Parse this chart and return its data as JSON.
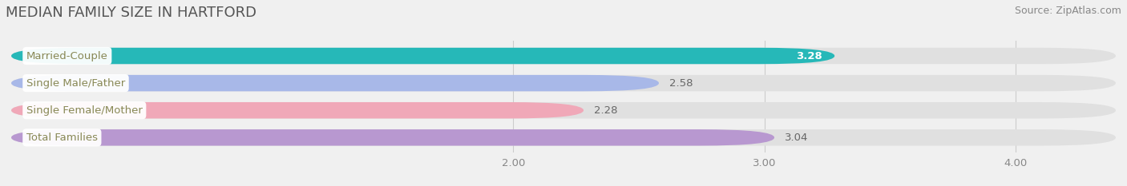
{
  "title": "MEDIAN FAMILY SIZE IN HARTFORD",
  "source": "Source: ZipAtlas.com",
  "categories": [
    "Married-Couple",
    "Single Male/Father",
    "Single Female/Mother",
    "Total Families"
  ],
  "values": [
    3.28,
    2.58,
    2.28,
    3.04
  ],
  "bar_colors": [
    "#26b8b8",
    "#a8b8e8",
    "#f0a8b8",
    "#b898d0"
  ],
  "label_text_color": "#888855",
  "background_color": "#f0f0f0",
  "bar_bg_color": "#e0e0e0",
  "xlim": [
    0.0,
    4.4
  ],
  "xticks": [
    2.0,
    3.0,
    4.0
  ],
  "xtick_labels": [
    "2.00",
    "3.00",
    "4.00"
  ],
  "bar_height": 0.6,
  "title_fontsize": 13,
  "label_fontsize": 9.5,
  "value_fontsize": 9.5,
  "tick_fontsize": 9.5,
  "source_fontsize": 9
}
